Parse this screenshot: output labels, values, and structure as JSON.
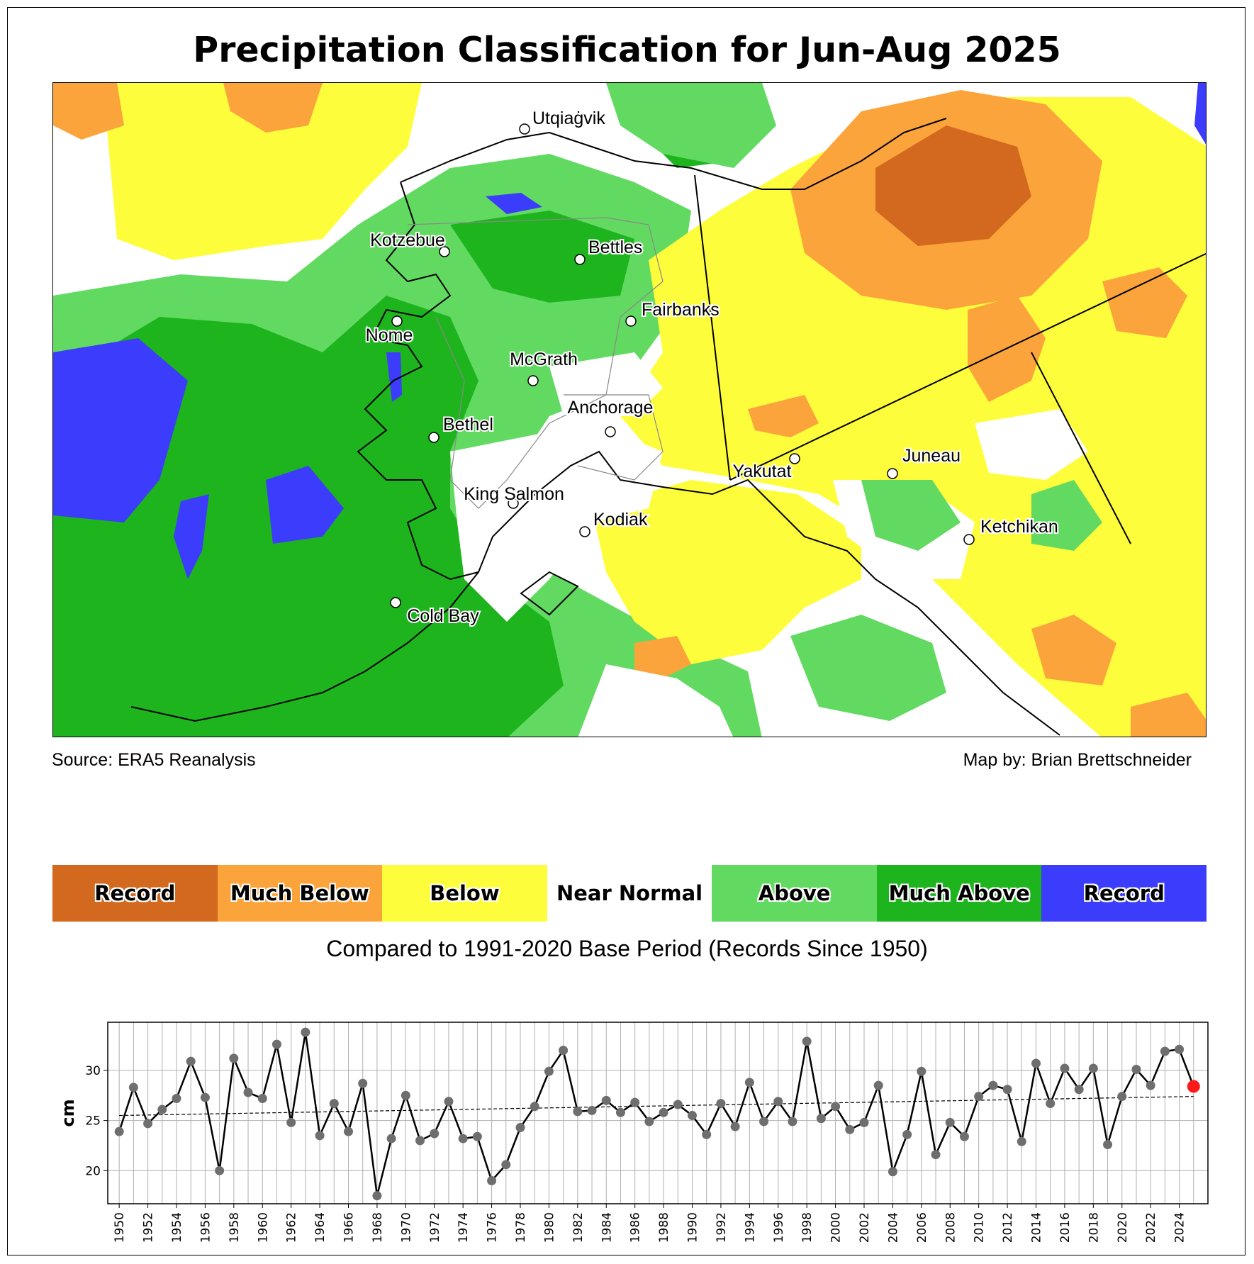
{
  "title": "Precipitation Classification for Jun-Aug 2025",
  "source": "Source: ERA5 Reanalysis",
  "credit": "Map by: Brian Brettschneider",
  "legend": [
    {
      "label": "Record",
      "color": "#d2691e"
    },
    {
      "label": "Much Below",
      "color": "#fca43c"
    },
    {
      "label": "Below",
      "color": "#fdfd3c"
    },
    {
      "label": "Near Normal",
      "color": "#ffffff"
    },
    {
      "label": "Above",
      "color": "#62da62"
    },
    {
      "label": "Much Above",
      "color": "#1eb41e"
    },
    {
      "label": "Record",
      "color": "#3c3cfc"
    }
  ],
  "base_note": "Compared to 1991-2020 Base Period   (Records Since 1950)",
  "map": {
    "cities": [
      "Utqiaġvik",
      "Kotzebue",
      "Bettles",
      "Nome",
      "Fairbanks",
      "McGrath",
      "Bethel",
      "Anchorage",
      "Yakutat",
      "Juneau",
      "King Salmon",
      "Kodiak",
      "Ketchikan",
      "Cold Bay"
    ]
  },
  "chart_data": {
    "type": "line",
    "title": "",
    "xlabel": "",
    "ylabel": "cm",
    "x": [
      1950,
      1951,
      1952,
      1953,
      1954,
      1955,
      1956,
      1957,
      1958,
      1959,
      1960,
      1961,
      1962,
      1963,
      1964,
      1965,
      1966,
      1967,
      1968,
      1969,
      1970,
      1971,
      1972,
      1973,
      1974,
      1975,
      1976,
      1977,
      1978,
      1979,
      1980,
      1981,
      1982,
      1983,
      1984,
      1985,
      1986,
      1987,
      1988,
      1989,
      1990,
      1991,
      1992,
      1993,
      1994,
      1995,
      1996,
      1997,
      1998,
      1999,
      2000,
      2001,
      2002,
      2003,
      2004,
      2005,
      2006,
      2007,
      2008,
      2009,
      2010,
      2011,
      2012,
      2013,
      2014,
      2015,
      2016,
      2017,
      2018,
      2019,
      2020,
      2021,
      2022,
      2023,
      2024,
      2025
    ],
    "values": [
      23.9,
      28.3,
      24.7,
      26.1,
      27.2,
      30.9,
      27.3,
      20.0,
      31.2,
      27.8,
      27.2,
      32.6,
      24.8,
      33.8,
      23.5,
      26.7,
      23.9,
      28.7,
      17.5,
      23.2,
      27.5,
      23.0,
      23.7,
      26.9,
      23.2,
      23.4,
      19.0,
      20.6,
      24.3,
      26.4,
      29.9,
      32.0,
      25.9,
      26.0,
      27.0,
      25.8,
      26.8,
      24.9,
      25.8,
      26.6,
      25.5,
      23.6,
      26.7,
      24.4,
      28.8,
      24.9,
      26.9,
      24.9,
      32.9,
      25.2,
      26.4,
      24.1,
      24.8,
      28.5,
      19.9,
      23.6,
      29.9,
      21.6,
      24.8,
      23.4,
      27.4,
      28.5,
      28.1,
      22.9,
      30.7,
      26.7,
      30.2,
      28.1,
      30.2,
      22.6,
      27.4,
      30.1,
      28.5,
      31.9,
      32.1,
      28.4
    ],
    "trend": {
      "start": 25.5,
      "end": 27.4
    },
    "highlight_year": 2025,
    "ylim": [
      16.7,
      34.8
    ],
    "yticks": [
      20,
      25,
      30
    ],
    "xticks": [
      1950,
      1952,
      1954,
      1956,
      1958,
      1960,
      1962,
      1964,
      1966,
      1968,
      1970,
      1972,
      1974,
      1976,
      1978,
      1980,
      1982,
      1984,
      1986,
      1988,
      1990,
      1992,
      1994,
      1996,
      1998,
      2000,
      2002,
      2004,
      2006,
      2008,
      2010,
      2012,
      2014,
      2016,
      2018,
      2020,
      2022,
      2024
    ],
    "grid": true
  }
}
